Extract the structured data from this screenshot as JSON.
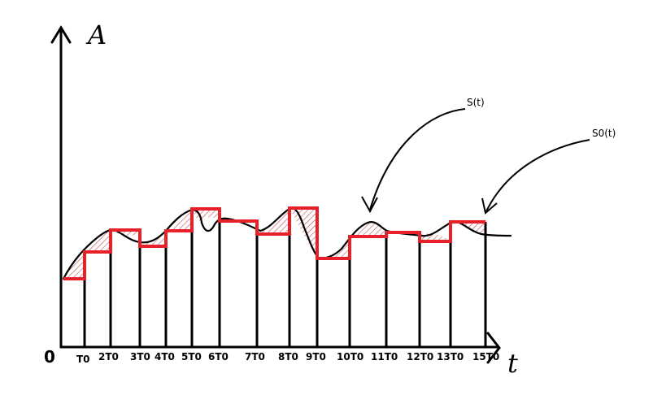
{
  "axes": {
    "y_label": "A",
    "x_label": "t",
    "origin_label": "0"
  },
  "tick_labels": [
    "T0",
    "2T0",
    "3T0",
    "4T0",
    "5T0",
    "6T0",
    "7T0",
    "8T0",
    "9T0",
    "10T0",
    "11T0",
    "12T0",
    "13T0",
    "15T0"
  ],
  "curve_labels": {
    "signal": "S(t)",
    "sampled": "S0(t)"
  },
  "colors": {
    "signal": "#000000",
    "sampled": "#e8202a",
    "error_hatch": "#e8202a"
  }
}
